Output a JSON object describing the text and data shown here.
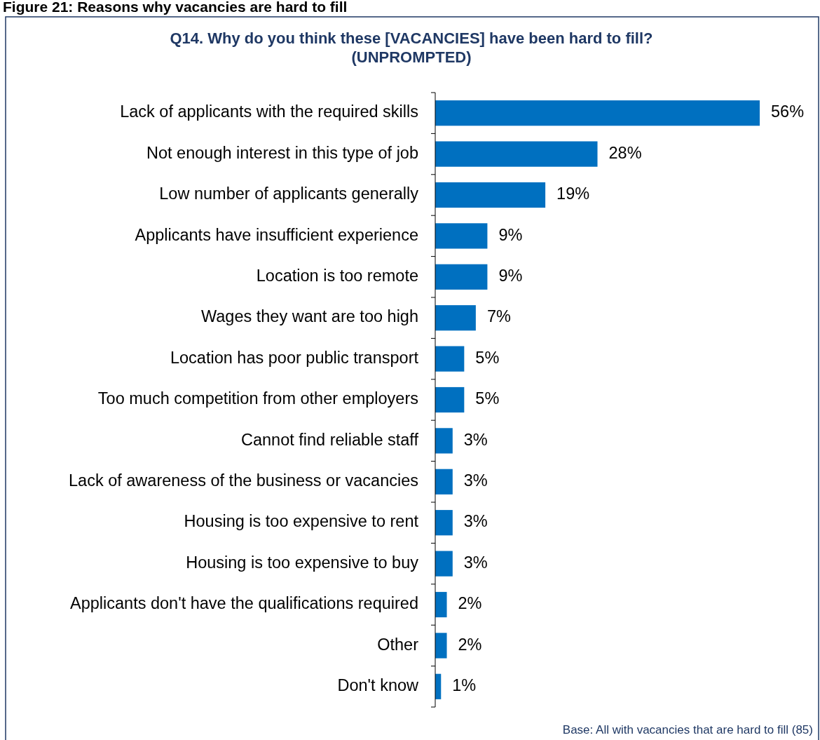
{
  "chart_data": {
    "type": "bar",
    "orientation": "horizontal",
    "title": "Figure 21: Reasons why vacancies are hard to fill",
    "subtitle": "Q14. Why do you think these [VACANCIES] have been hard to fill? (UNPROMPTED)",
    "categories": [
      "Lack of applicants with the required skills",
      "Not enough interest in this type of job",
      "Low number of applicants generally",
      "Applicants have insufficient experience",
      "Location is too remote",
      "Wages they want are too high",
      "Location has poor public transport",
      "Too much competition from other employers",
      "Cannot find reliable staff",
      "Lack of awareness of the business or vacancies",
      "Housing is too expensive to rent",
      "Housing is too expensive to buy",
      "Applicants don't have the qualifications required",
      "Other",
      "Don't know"
    ],
    "values": [
      56,
      28,
      19,
      9,
      9,
      7,
      5,
      5,
      3,
      3,
      3,
      3,
      2,
      2,
      1
    ],
    "value_labels": [
      "56%",
      "28%",
      "19%",
      "9%",
      "9%",
      "7%",
      "5%",
      "5%",
      "3%",
      "3%",
      "3%",
      "3%",
      "2%",
      "2%",
      "1%"
    ],
    "color": "#0070c0",
    "annotations": [
      "Base: All with vacancies that are hard to fill (85)"
    ]
  }
}
